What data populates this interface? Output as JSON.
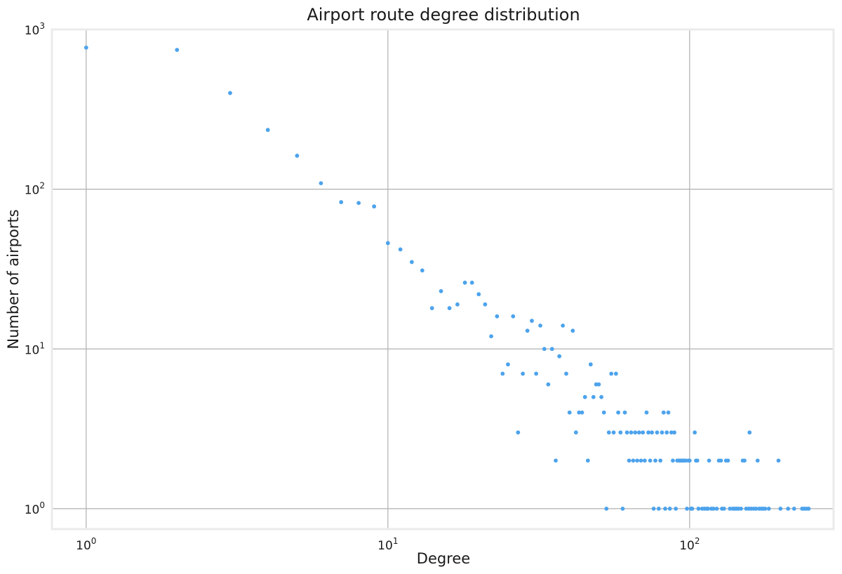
{
  "chart_data": {
    "type": "scatter",
    "title": "Airport route degree distribution",
    "xlabel": "Degree",
    "ylabel": "Number of airports",
    "xscale": "log",
    "yscale": "log",
    "xlim": [
      0.77,
      300
    ],
    "ylim": [
      0.745,
      1000
    ],
    "grid": true,
    "colors": {
      "points": "#4da3ec",
      "grid": "#b0b0b0",
      "frame": "#ebebeb"
    },
    "x_ticks": [
      {
        "value": 1,
        "base": "10",
        "exp": "0"
      },
      {
        "value": 10,
        "base": "10",
        "exp": "1"
      },
      {
        "value": 100,
        "base": "10",
        "exp": "2"
      }
    ],
    "y_ticks": [
      {
        "value": 1,
        "base": "10",
        "exp": "0"
      },
      {
        "value": 10,
        "base": "10",
        "exp": "1"
      },
      {
        "value": 100,
        "base": "10",
        "exp": "2"
      },
      {
        "value": 1000,
        "base": "10",
        "exp": "3"
      }
    ],
    "points": [
      {
        "x": 1,
        "y": 770
      },
      {
        "x": 2,
        "y": 745
      },
      {
        "x": 3,
        "y": 400
      },
      {
        "x": 4,
        "y": 235
      },
      {
        "x": 5,
        "y": 162
      },
      {
        "x": 6,
        "y": 109
      },
      {
        "x": 7,
        "y": 83
      },
      {
        "x": 8,
        "y": 82
      },
      {
        "x": 9,
        "y": 78
      },
      {
        "x": 10,
        "y": 46
      },
      {
        "x": 11,
        "y": 42
      },
      {
        "x": 12,
        "y": 35
      },
      {
        "x": 13,
        "y": 31
      },
      {
        "x": 14,
        "y": 18
      },
      {
        "x": 15,
        "y": 23
      },
      {
        "x": 16,
        "y": 18
      },
      {
        "x": 17,
        "y": 19
      },
      {
        "x": 18,
        "y": 26
      },
      {
        "x": 19,
        "y": 26
      },
      {
        "x": 20,
        "y": 22
      },
      {
        "x": 21,
        "y": 19
      },
      {
        "x": 22,
        "y": 12
      },
      {
        "x": 23,
        "y": 16
      },
      {
        "x": 24,
        "y": 7
      },
      {
        "x": 25,
        "y": 8
      },
      {
        "x": 26,
        "y": 16
      },
      {
        "x": 27,
        "y": 3
      },
      {
        "x": 28,
        "y": 7
      },
      {
        "x": 29,
        "y": 13
      },
      {
        "x": 30,
        "y": 15
      },
      {
        "x": 31,
        "y": 7
      },
      {
        "x": 32,
        "y": 14
      },
      {
        "x": 33,
        "y": 10
      },
      {
        "x": 34,
        "y": 6
      },
      {
        "x": 35,
        "y": 10
      },
      {
        "x": 36,
        "y": 2
      },
      {
        "x": 37,
        "y": 9
      },
      {
        "x": 38,
        "y": 14
      },
      {
        "x": 39,
        "y": 7
      },
      {
        "x": 40,
        "y": 4
      },
      {
        "x": 41,
        "y": 13
      },
      {
        "x": 42,
        "y": 3
      },
      {
        "x": 43,
        "y": 4
      },
      {
        "x": 44,
        "y": 4
      },
      {
        "x": 45,
        "y": 5
      },
      {
        "x": 46,
        "y": 2
      },
      {
        "x": 47,
        "y": 8
      },
      {
        "x": 48,
        "y": 5
      },
      {
        "x": 49,
        "y": 6
      },
      {
        "x": 50,
        "y": 6
      },
      {
        "x": 51,
        "y": 5
      },
      {
        "x": 52,
        "y": 4
      },
      {
        "x": 53,
        "y": 1
      },
      {
        "x": 54,
        "y": 3
      },
      {
        "x": 55,
        "y": 7
      },
      {
        "x": 56,
        "y": 3
      },
      {
        "x": 57,
        "y": 7
      },
      {
        "x": 58,
        "y": 4
      },
      {
        "x": 59,
        "y": 3
      },
      {
        "x": 60,
        "y": 1
      },
      {
        "x": 61,
        "y": 4
      },
      {
        "x": 62,
        "y": 3
      },
      {
        "x": 63,
        "y": 2
      },
      {
        "x": 64,
        "y": 3
      },
      {
        "x": 65,
        "y": 2
      },
      {
        "x": 66,
        "y": 3
      },
      {
        "x": 67,
        "y": 2
      },
      {
        "x": 68,
        "y": 3
      },
      {
        "x": 69,
        "y": 2
      },
      {
        "x": 70,
        "y": 3
      },
      {
        "x": 71,
        "y": 2
      },
      {
        "x": 72,
        "y": 4
      },
      {
        "x": 73,
        "y": 3
      },
      {
        "x": 74,
        "y": 2
      },
      {
        "x": 75,
        "y": 3
      },
      {
        "x": 76,
        "y": 1
      },
      {
        "x": 77,
        "y": 2
      },
      {
        "x": 78,
        "y": 3
      },
      {
        "x": 79,
        "y": 1
      },
      {
        "x": 80,
        "y": 2
      },
      {
        "x": 81,
        "y": 3
      },
      {
        "x": 82,
        "y": 4
      },
      {
        "x": 83,
        "y": 1
      },
      {
        "x": 84,
        "y": 3
      },
      {
        "x": 85,
        "y": 4
      },
      {
        "x": 86,
        "y": 1
      },
      {
        "x": 87,
        "y": 3
      },
      {
        "x": 88,
        "y": 2
      },
      {
        "x": 89,
        "y": 3
      },
      {
        "x": 90,
        "y": 1
      },
      {
        "x": 91,
        "y": 2
      },
      {
        "x": 92,
        "y": 2
      },
      {
        "x": 93,
        "y": 2
      },
      {
        "x": 94,
        "y": 2
      },
      {
        "x": 95,
        "y": 2
      },
      {
        "x": 96,
        "y": 2
      },
      {
        "x": 97,
        "y": 2
      },
      {
        "x": 98,
        "y": 1
      },
      {
        "x": 99,
        "y": 2
      },
      {
        "x": 100,
        "y": 2
      },
      {
        "x": 101,
        "y": 1
      },
      {
        "x": 102,
        "y": 1
      },
      {
        "x": 104,
        "y": 3
      },
      {
        "x": 105,
        "y": 2
      },
      {
        "x": 106,
        "y": 2
      },
      {
        "x": 107,
        "y": 1
      },
      {
        "x": 110,
        "y": 1
      },
      {
        "x": 112,
        "y": 1
      },
      {
        "x": 114,
        "y": 1
      },
      {
        "x": 115,
        "y": 1
      },
      {
        "x": 116,
        "y": 2
      },
      {
        "x": 118,
        "y": 1
      },
      {
        "x": 120,
        "y": 1
      },
      {
        "x": 123,
        "y": 1
      },
      {
        "x": 125,
        "y": 2
      },
      {
        "x": 127,
        "y": 2
      },
      {
        "x": 128,
        "y": 1
      },
      {
        "x": 130,
        "y": 1
      },
      {
        "x": 132,
        "y": 2
      },
      {
        "x": 134,
        "y": 2
      },
      {
        "x": 136,
        "y": 1
      },
      {
        "x": 139,
        "y": 1
      },
      {
        "x": 141,
        "y": 1
      },
      {
        "x": 143,
        "y": 1
      },
      {
        "x": 145,
        "y": 1
      },
      {
        "x": 148,
        "y": 1
      },
      {
        "x": 150,
        "y": 2
      },
      {
        "x": 152,
        "y": 2
      },
      {
        "x": 154,
        "y": 1
      },
      {
        "x": 157,
        "y": 1
      },
      {
        "x": 158,
        "y": 3
      },
      {
        "x": 160,
        "y": 1
      },
      {
        "x": 163,
        "y": 1
      },
      {
        "x": 166,
        "y": 1
      },
      {
        "x": 168,
        "y": 2
      },
      {
        "x": 170,
        "y": 1
      },
      {
        "x": 173,
        "y": 1
      },
      {
        "x": 175,
        "y": 1
      },
      {
        "x": 178,
        "y": 1
      },
      {
        "x": 183,
        "y": 1
      },
      {
        "x": 197,
        "y": 2
      },
      {
        "x": 200,
        "y": 1
      },
      {
        "x": 212,
        "y": 1
      },
      {
        "x": 222,
        "y": 1
      },
      {
        "x": 236,
        "y": 1
      },
      {
        "x": 240,
        "y": 1
      },
      {
        "x": 244,
        "y": 1
      },
      {
        "x": 248,
        "y": 1
      }
    ]
  }
}
